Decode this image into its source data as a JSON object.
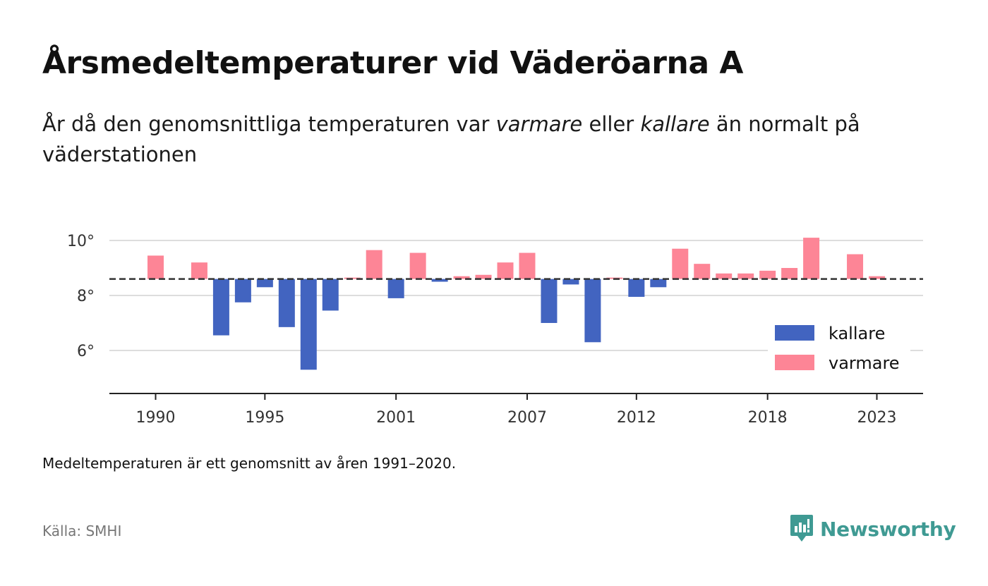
{
  "header": {
    "title": "Årsmedeltemperaturer vid Väderöarna A",
    "subtitle_part1": "År då den genomsnittliga temperaturen var ",
    "subtitle_warm": "varmare",
    "subtitle_part2": " eller ",
    "subtitle_cold": "kallare",
    "subtitle_part3": " än normalt på väderstationen"
  },
  "footer": {
    "note": "Medeltemperaturen är ett genomsnitt av åren 1991–2020.",
    "source": "Källa: SMHI",
    "brand": "Newsworthy",
    "brand_icon": "newsworthy-logo-icon"
  },
  "colors": {
    "warm": "#fd8596",
    "cold": "#4264c0",
    "reference_line": "#333333",
    "grid": "#dddddd",
    "axis": "#222222",
    "brand": "#3f9a93"
  },
  "chart_data": {
    "type": "bar",
    "baseline": 8.6,
    "ylim": [
      4.5,
      10.5
    ],
    "yticks": [
      10,
      8,
      6
    ],
    "ytick_labels": [
      "10°",
      "8°",
      "6°"
    ],
    "xticks": [
      1990,
      1995,
      2001,
      2007,
      2012,
      2018,
      2023
    ],
    "xtick_labels": [
      "1990",
      "1995",
      "2001",
      "2007",
      "2012",
      "2018",
      "2023"
    ],
    "grid": true,
    "legend": {
      "placement": "bottom-right",
      "entries": [
        {
          "key": "cold",
          "label": "kallare"
        },
        {
          "key": "warm",
          "label": "varmare"
        }
      ]
    },
    "years": [
      1990,
      1991,
      1992,
      1993,
      1994,
      1995,
      1996,
      1997,
      1998,
      1999,
      2000,
      2001,
      2002,
      2003,
      2004,
      2005,
      2006,
      2007,
      2008,
      2009,
      2010,
      2011,
      2012,
      2013,
      2014,
      2015,
      2016,
      2017,
      2018,
      2019,
      2020,
      2021,
      2022,
      2023
    ],
    "values": [
      9.45,
      null,
      9.2,
      6.55,
      7.75,
      8.3,
      6.85,
      5.3,
      7.45,
      8.65,
      9.65,
      7.9,
      9.55,
      8.5,
      8.7,
      8.75,
      9.2,
      9.55,
      7.0,
      8.4,
      6.3,
      8.65,
      7.95,
      8.3,
      9.7,
      9.15,
      8.8,
      8.8,
      8.9,
      9.0,
      10.1,
      null,
      9.5,
      8.7
    ]
  }
}
